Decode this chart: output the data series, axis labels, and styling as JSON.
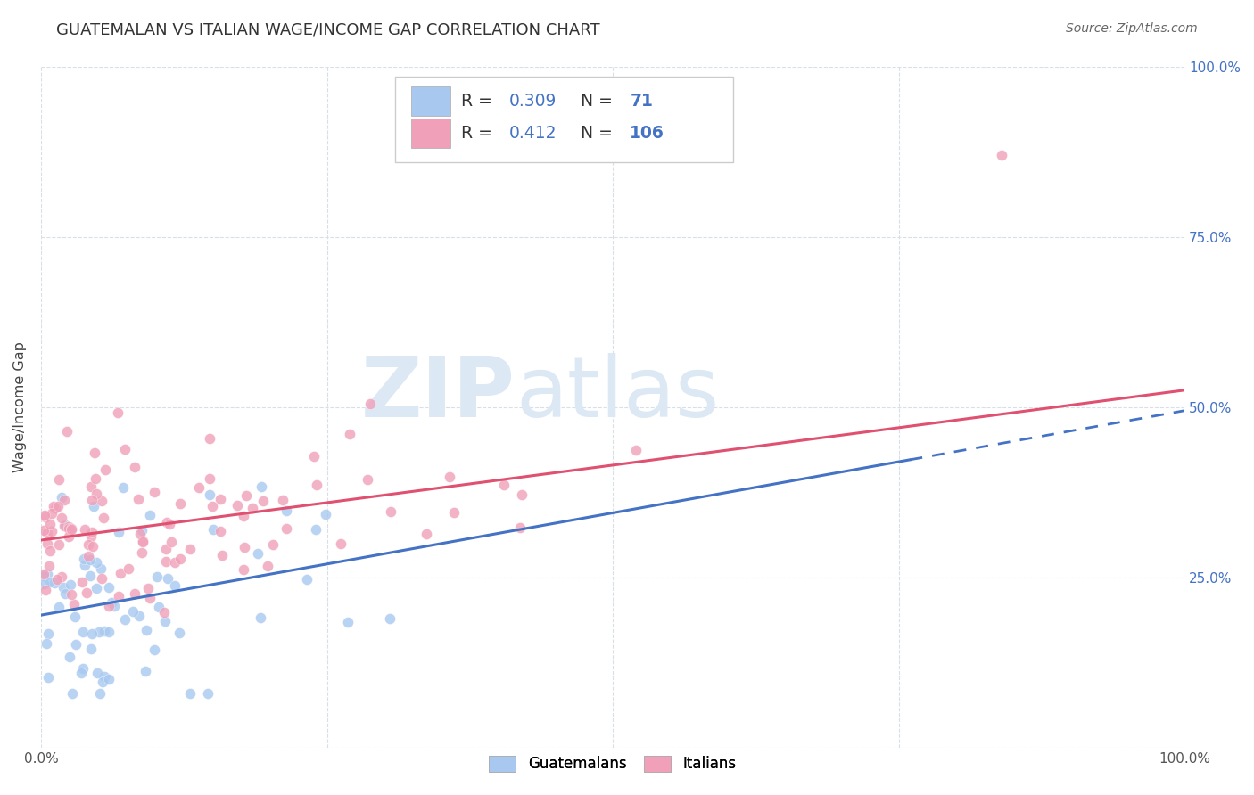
{
  "title": "GUATEMALAN VS ITALIAN WAGE/INCOME GAP CORRELATION CHART",
  "source": "Source: ZipAtlas.com",
  "ylabel": "Wage/Income Gap",
  "xlim": [
    0,
    1
  ],
  "ylim": [
    0,
    1
  ],
  "guatemalans_R": 0.309,
  "guatemalans_N": 71,
  "italians_R": 0.412,
  "italians_N": 106,
  "guatemalan_color": "#a8c8f0",
  "italian_color": "#f0a0b8",
  "guatemalan_line_color": "#4472c4",
  "italian_line_color": "#e05070",
  "watermark_zip": "ZIP",
  "watermark_atlas": "atlas",
  "watermark_color": "#dce8f4",
  "background_color": "#ffffff",
  "grid_color": "#d8dfe8",
  "title_fontsize": 13,
  "right_tick_color": "#4472c4",
  "seed_guatemalans": 7,
  "seed_italians": 42
}
